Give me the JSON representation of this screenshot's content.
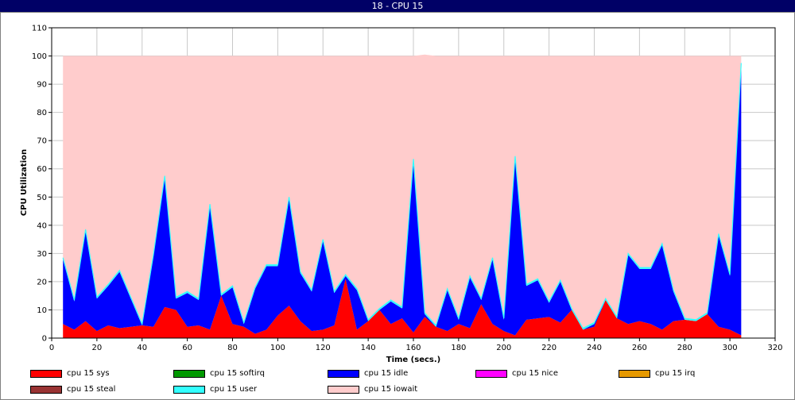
{
  "window": {
    "title": "18 - CPU 15"
  },
  "chart_data": {
    "type": "area",
    "stacked": true,
    "title": "",
    "xlabel": "Time (secs.)",
    "ylabel": "CPU Utilization",
    "xlim": [
      0,
      320
    ],
    "ylim": [
      0,
      110
    ],
    "xticks": [
      0,
      20,
      40,
      60,
      80,
      100,
      120,
      140,
      160,
      180,
      200,
      220,
      240,
      260,
      280,
      300,
      320
    ],
    "yticks": [
      0,
      10,
      20,
      30,
      40,
      50,
      60,
      70,
      80,
      90,
      100,
      110
    ],
    "grid": true,
    "legend_position": "bottom",
    "x": [
      5,
      10,
      15,
      20,
      25,
      30,
      35,
      40,
      45,
      50,
      55,
      60,
      65,
      70,
      75,
      80,
      85,
      90,
      95,
      100,
      105,
      110,
      115,
      120,
      125,
      130,
      135,
      140,
      145,
      150,
      155,
      160,
      165,
      170,
      175,
      180,
      185,
      190,
      195,
      200,
      205,
      210,
      215,
      220,
      225,
      230,
      235,
      240,
      245,
      250,
      255,
      260,
      265,
      270,
      275,
      280,
      285,
      290,
      295,
      300,
      305
    ],
    "series": [
      {
        "name": "cpu 15 sys",
        "color": "#ff0000",
        "values": [
          5,
          3,
          6,
          2.5,
          4.5,
          3.5,
          4,
          4.5,
          4,
          11,
          10,
          4,
          4.5,
          3,
          15,
          5,
          4,
          1.5,
          3,
          8,
          11.5,
          6,
          2.5,
          3,
          4.5,
          21,
          3,
          6,
          10,
          5,
          7,
          2,
          7.5,
          4,
          2.5,
          5,
          3.5,
          12,
          5,
          2.5,
          1,
          6.5,
          7,
          7.5,
          5.5,
          10,
          3,
          4,
          13.5,
          7,
          5,
          6,
          5,
          3,
          6,
          6.5,
          6,
          8.5,
          4,
          3,
          1
        ]
      },
      {
        "name": "cpu 15 softirq",
        "color": "#009900",
        "values": [
          0,
          0,
          0,
          0,
          0,
          0,
          0,
          0,
          0,
          0,
          0,
          0,
          0,
          0,
          0,
          0,
          0,
          0,
          0,
          0,
          0,
          0,
          0,
          0,
          0,
          0,
          0,
          0,
          0,
          0,
          0,
          0,
          0,
          0,
          0,
          0,
          0,
          0,
          0,
          0,
          0,
          0,
          0,
          0,
          0,
          0,
          0,
          0,
          0,
          0,
          0,
          0,
          0,
          0,
          0,
          0,
          0,
          0,
          0,
          0,
          0
        ]
      },
      {
        "name": "cpu 15 idle",
        "color": "#0000ff",
        "values": [
          23,
          10,
          32,
          11.5,
          14,
          20,
          10,
          0,
          25,
          46,
          4,
          12,
          9,
          44,
          0,
          13,
          1,
          16,
          22.5,
          17.5,
          38,
          17,
          14,
          31.5,
          11.5,
          1,
          14,
          0,
          0,
          8,
          3.5,
          61,
          1,
          0,
          14.5,
          1.5,
          18,
          1.5,
          23,
          4,
          63,
          12,
          13.5,
          5,
          14.5,
          0,
          0,
          1,
          0,
          0,
          24.5,
          18.5,
          19.5,
          30,
          10.5,
          0,
          0,
          0,
          32.5,
          19,
          96
        ]
      },
      {
        "name": "cpu 15 nice",
        "color": "#ff00ff",
        "values": [
          0,
          0,
          0,
          0,
          0,
          0,
          0,
          0,
          0,
          0,
          0,
          0,
          0,
          0,
          0,
          0,
          0,
          0,
          0,
          0,
          0,
          0,
          0,
          0,
          0,
          0,
          0,
          0,
          0,
          0,
          0,
          0,
          0,
          0,
          0,
          0,
          0,
          0,
          0,
          0,
          0,
          0,
          0,
          0,
          0,
          0,
          0,
          0,
          0,
          0,
          0,
          0,
          0,
          0,
          0,
          0,
          0,
          0,
          0,
          0,
          0
        ]
      },
      {
        "name": "cpu 15 irq",
        "color": "#e69900",
        "values": [
          0,
          0,
          0,
          0,
          0,
          0,
          0,
          0,
          0,
          0,
          0,
          0,
          0,
          0,
          0,
          0,
          0,
          0,
          0,
          0,
          0,
          0,
          0,
          0,
          0,
          0,
          0,
          0,
          0,
          0,
          0,
          0,
          0,
          0,
          0,
          0,
          0,
          0,
          0,
          0,
          0,
          0,
          0,
          0,
          0,
          0,
          0,
          0,
          0,
          0,
          0,
          0,
          0,
          0,
          0,
          0,
          0,
          0,
          0,
          0,
          0
        ]
      },
      {
        "name": "cpu 15 steal",
        "color": "#993333",
        "values": [
          0,
          0,
          0,
          0,
          0,
          0,
          0,
          0,
          0,
          0,
          0,
          0,
          0,
          0,
          0,
          0,
          0,
          0,
          0,
          0,
          0,
          0,
          0,
          0,
          0,
          0,
          0,
          0,
          0,
          0,
          0,
          0,
          0,
          0,
          0,
          0,
          0,
          0,
          0,
          0,
          0,
          0,
          0,
          0,
          0,
          0,
          0,
          0,
          0,
          0,
          0,
          0,
          0,
          0,
          0,
          0,
          0,
          0,
          0,
          0,
          0
        ]
      },
      {
        "name": "cpu 15 user",
        "color": "#33ffff",
        "values": [
          0.5,
          0.5,
          0.5,
          0.5,
          0.5,
          0.5,
          0.5,
          0.5,
          0.5,
          0.5,
          0.5,
          0.5,
          0.5,
          0.5,
          0.5,
          0.5,
          0.5,
          0.5,
          0.5,
          0.5,
          0.5,
          0.5,
          0.5,
          0.5,
          0.5,
          0.5,
          0.5,
          0.5,
          0.5,
          0.5,
          0.5,
          0.5,
          0.5,
          0.5,
          0.5,
          0.5,
          0.5,
          0.5,
          0.5,
          0.5,
          0.5,
          0.5,
          0.5,
          0.5,
          0.5,
          0.5,
          0.5,
          0.5,
          0.5,
          0.5,
          0.5,
          0.5,
          0.5,
          0.5,
          0.5,
          0.5,
          0.5,
          0.5,
          0.5,
          0.5,
          0.5
        ]
      },
      {
        "name": "cpu 15 iowait",
        "color": "#ffcccc",
        "values": [
          71.5,
          86.5,
          61.5,
          85.5,
          81,
          76,
          85.5,
          95,
          70.5,
          42.5,
          85.5,
          83.5,
          86,
          52.5,
          84.5,
          81.5,
          94.5,
          82,
          74,
          74,
          50,
          76.5,
          83,
          65,
          83.5,
          77.5,
          82.5,
          93.5,
          89.5,
          86.5,
          89,
          36.5,
          91.5,
          95.5,
          82.5,
          93,
          78,
          86,
          71.5,
          93,
          35.5,
          81,
          79,
          87,
          79.5,
          89.5,
          96.5,
          94.5,
          86,
          92.5,
          70,
          75,
          75,
          66.5,
          83,
          93,
          93.5,
          91,
          63,
          77.5,
          2.5
        ]
      }
    ]
  }
}
